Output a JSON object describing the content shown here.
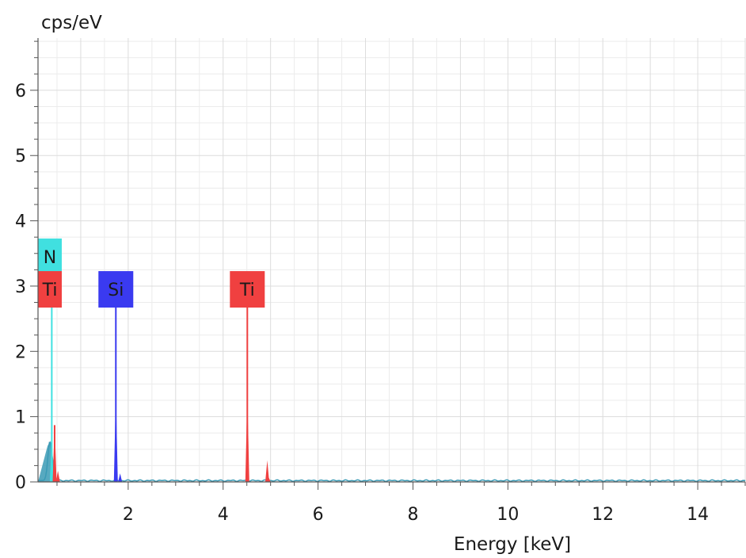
{
  "chart_data": {
    "type": "line",
    "ylabel": "cps/eV",
    "xlabel": "Energy [keV]",
    "xlim": [
      0.1,
      15.0
    ],
    "ylim": [
      0,
      6.8
    ],
    "x_ticks": [
      2,
      4,
      6,
      8,
      10,
      12,
      14
    ],
    "y_ticks": [
      0,
      1,
      2,
      3,
      4,
      5,
      6
    ],
    "grid": true,
    "spectrum_color": "#3a9ab5",
    "element_markers": [
      {
        "label": "N",
        "energy": 0.39,
        "color": "#40e0e0",
        "level": 3.45,
        "line_height": 2.7
      },
      {
        "label": "Ti",
        "energy": 0.45,
        "color": "#f04040",
        "level": 2.95,
        "line_height": 0.87
      },
      {
        "label": "Si",
        "energy": 1.74,
        "color": "#3a3af0",
        "level": 2.95,
        "line_height": 2.7
      },
      {
        "label": "Ti",
        "energy": 4.51,
        "color": "#f04040",
        "level": 2.95,
        "line_height": 2.7
      }
    ],
    "peaks": [
      {
        "energy": 0.39,
        "height": 0.63,
        "color": "#40e0e0"
      },
      {
        "energy": 0.45,
        "height": 0.87,
        "color": "#f04040"
      },
      {
        "energy": 0.52,
        "height": 0.17,
        "color": "#f04040"
      },
      {
        "energy": 1.74,
        "height": 1.37,
        "color": "#3a3af0"
      },
      {
        "energy": 1.83,
        "height": 0.13,
        "color": "#3a3af0"
      },
      {
        "energy": 4.51,
        "height": 1.37,
        "color": "#f04040"
      },
      {
        "energy": 4.93,
        "height": 0.33,
        "color": "#f04040"
      },
      {
        "energy": 4.96,
        "height": 0.07,
        "color": "#f04040"
      }
    ]
  }
}
